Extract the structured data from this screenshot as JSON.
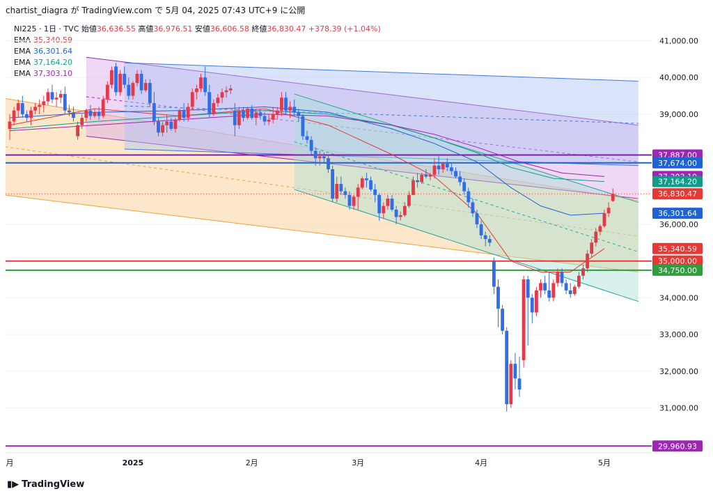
{
  "header": {
    "text": "chartist_diagra が TradingView.com で 5月 04, 2025 07:43 UTC+9 に公開"
  },
  "legend": {
    "symbol": "NI225 · 1日 · TVC",
    "open_label": "始値",
    "open": "36,636.55",
    "high_label": "高値",
    "high": "36,976.51",
    "low_label": "安値",
    "low": "36,606.58",
    "close_label": "終値",
    "close": "36,830.47",
    "change": "+378.39 (+1.04%)",
    "emas": [
      {
        "label": "EMA",
        "value": "35,340.59",
        "color": "#e53935"
      },
      {
        "label": "EMA",
        "value": "36,301.64",
        "color": "#1e63d6"
      },
      {
        "label": "EMA",
        "value": "37,164.20",
        "color": "#0f9d8a"
      },
      {
        "label": "EMA",
        "value": "37,303.10",
        "color": "#9c27b0"
      }
    ]
  },
  "colors": {
    "up": "#e53949",
    "down": "#2f6ee8",
    "down_text": "#1e63d6",
    "up_text": "#e53949"
  },
  "footer": {
    "brand": "TradingView"
  },
  "chart_data": {
    "type": "candlestick",
    "ylim": [
      30500,
      41600
    ],
    "y_ticks": [
      "41,000.00",
      "40,000.00",
      "39,000.00",
      "36,000.00",
      "34,000.00",
      "33,000.00",
      "32,000.00",
      "31,000.00"
    ],
    "y_tick_values": [
      41000,
      40000,
      39000,
      36000,
      34000,
      33000,
      32000,
      31000
    ],
    "x_ticks": [
      {
        "label": "月",
        "t": 0
      },
      {
        "label": "2025",
        "t": 29
      },
      {
        "label": "2月",
        "t": 57
      },
      {
        "label": "3月",
        "t": 82
      },
      {
        "label": "4月",
        "t": 111
      },
      {
        "label": "5月",
        "t": 140
      }
    ],
    "candles": [
      [
        38600,
        39000,
        38300,
        38800
      ],
      [
        38800,
        39200,
        38700,
        39100
      ],
      [
        39100,
        39400,
        38900,
        39300
      ],
      [
        39300,
        39500,
        38900,
        39000
      ],
      [
        39000,
        39100,
        38800,
        38900
      ],
      [
        38900,
        39200,
        38700,
        39100
      ],
      [
        39100,
        39300,
        39000,
        39200
      ],
      [
        39200,
        39400,
        39000,
        39250
      ],
      [
        39250,
        39500,
        39050,
        39350
      ],
      [
        39350,
        39700,
        39250,
        39600
      ],
      [
        39600,
        39800,
        39300,
        39400
      ],
      [
        39400,
        39600,
        39200,
        39450
      ],
      [
        39450,
        39650,
        39300,
        39550
      ],
      [
        39550,
        39750,
        39000,
        39100
      ],
      [
        39100,
        39250,
        38950,
        39050
      ],
      [
        39050,
        39200,
        38800,
        38900
      ],
      [
        38400,
        38800,
        38300,
        38700
      ],
      [
        38700,
        39000,
        38600,
        38900
      ],
      [
        38900,
        39150,
        38800,
        39100
      ],
      [
        39100,
        39250,
        38850,
        38950
      ],
      [
        38950,
        39150,
        38900,
        39050
      ],
      [
        39050,
        39200,
        38850,
        38950
      ],
      [
        38950,
        39500,
        38900,
        39400
      ],
      [
        39400,
        39900,
        39300,
        39800
      ],
      [
        39800,
        40300,
        39700,
        40200
      ],
      [
        40300,
        40400,
        39500,
        39600
      ],
      [
        39600,
        40200,
        39500,
        40100
      ],
      [
        40100,
        40300,
        39700,
        39800
      ],
      [
        39800,
        40000,
        39400,
        39500
      ],
      [
        39500,
        39900,
        39400,
        39850
      ],
      [
        39850,
        40200,
        39750,
        40100
      ],
      [
        40100,
        40200,
        39550,
        39650
      ],
      [
        39650,
        39950,
        39600,
        39850
      ],
      [
        39850,
        39950,
        39200,
        39300
      ],
      [
        39300,
        39600,
        38700,
        38800
      ],
      [
        38800,
        38900,
        38400,
        38500
      ],
      [
        38500,
        38800,
        38400,
        38700
      ],
      [
        38700,
        39000,
        38500,
        38800
      ],
      [
        38800,
        38900,
        38550,
        38600
      ],
      [
        38600,
        38900,
        38500,
        38850
      ],
      [
        38850,
        39150,
        38800,
        39100
      ],
      [
        39100,
        39300,
        38800,
        38900
      ],
      [
        38900,
        39300,
        38800,
        39200
      ],
      [
        39200,
        39700,
        39100,
        39600
      ],
      [
        39600,
        39800,
        39400,
        39700
      ],
      [
        39700,
        40100,
        39600,
        40000
      ],
      [
        40000,
        40300,
        39500,
        39600
      ],
      [
        39600,
        39800,
        38900,
        39000
      ],
      [
        39000,
        39400,
        38950,
        39300
      ],
      [
        39300,
        39550,
        39200,
        39450
      ],
      [
        39450,
        39700,
        39300,
        39600
      ],
      [
        39600,
        39750,
        39450,
        39650
      ],
      [
        39650,
        39800,
        39550,
        39700
      ],
      [
        39100,
        39300,
        38400,
        38700
      ],
      [
        38700,
        39200,
        38600,
        39100
      ],
      [
        39100,
        39200,
        38800,
        38900
      ],
      [
        38900,
        39200,
        38850,
        39150
      ],
      [
        39150,
        39250,
        38850,
        38900
      ],
      [
        38900,
        39150,
        38700,
        39050
      ],
      [
        39050,
        39150,
        38850,
        38950
      ],
      [
        38950,
        39050,
        38700,
        38800
      ],
      [
        38800,
        39000,
        38700,
        38850
      ],
      [
        38850,
        39200,
        38750,
        39000
      ],
      [
        39000,
        39200,
        38850,
        39100
      ],
      [
        39100,
        39600,
        38950,
        39450
      ],
      [
        39450,
        39600,
        39000,
        39100
      ],
      [
        39100,
        39350,
        38900,
        39200
      ],
      [
        39200,
        39400,
        38950,
        39050
      ],
      [
        39050,
        39150,
        38800,
        38950
      ],
      [
        38950,
        39000,
        38300,
        38400
      ],
      [
        38400,
        38550,
        38200,
        38300
      ],
      [
        38300,
        38400,
        37900,
        38000
      ],
      [
        38000,
        38100,
        37600,
        37800
      ],
      [
        37800,
        38000,
        37600,
        37850
      ],
      [
        37850,
        37950,
        37650,
        37800
      ],
      [
        37800,
        37900,
        37400,
        37500
      ],
      [
        37500,
        37600,
        36600,
        36700
      ],
      [
        36700,
        37300,
        36600,
        37100
      ],
      [
        37100,
        37300,
        36800,
        36900
      ],
      [
        36900,
        37000,
        36700,
        36800
      ],
      [
        36800,
        36900,
        36400,
        36500
      ],
      [
        36500,
        36800,
        36400,
        36750
      ],
      [
        36750,
        37100,
        36400,
        37000
      ],
      [
        37000,
        37300,
        36950,
        37250
      ],
      [
        37250,
        37400,
        37000,
        37200
      ],
      [
        37200,
        37300,
        36900,
        36950
      ],
      [
        36950,
        37100,
        36600,
        36800
      ],
      [
        36800,
        36850,
        36100,
        36300
      ],
      [
        36300,
        36600,
        36150,
        36500
      ],
      [
        36500,
        36800,
        36400,
        36700
      ],
      [
        36700,
        36800,
        36350,
        36400
      ],
      [
        36400,
        36500,
        36000,
        36200
      ],
      [
        36200,
        36350,
        36100,
        36250
      ],
      [
        36250,
        36600,
        36200,
        36500
      ],
      [
        36500,
        36900,
        36450,
        36800
      ],
      [
        36800,
        37300,
        36800,
        37200
      ],
      [
        37200,
        37400,
        37000,
        37150
      ],
      [
        37150,
        37400,
        37100,
        37350
      ],
      [
        37350,
        37500,
        37250,
        37300
      ],
      [
        37300,
        37400,
        37200,
        37350
      ],
      [
        37350,
        37800,
        37250,
        37600
      ],
      [
        37600,
        37850,
        37350,
        37500
      ],
      [
        37500,
        37700,
        37400,
        37650
      ],
      [
        37650,
        37800,
        37450,
        37550
      ],
      [
        37550,
        37650,
        37350,
        37450
      ],
      [
        37450,
        37550,
        37250,
        37300
      ],
      [
        37300,
        37450,
        37050,
        37150
      ],
      [
        37150,
        37250,
        36800,
        36900
      ],
      [
        36900,
        37000,
        36450,
        36600
      ],
      [
        36600,
        36700,
        36200,
        36300
      ],
      [
        36300,
        36400,
        35900,
        36000
      ],
      [
        36000,
        36100,
        35600,
        35700
      ],
      [
        35700,
        35800,
        35400,
        35600
      ],
      [
        35600,
        35700,
        35400,
        35500
      ],
      [
        35000,
        35100,
        34100,
        34300
      ],
      [
        34300,
        34500,
        33200,
        33700
      ],
      [
        33700,
        33800,
        33000,
        33100
      ],
      [
        33100,
        33200,
        30900,
        31100
      ],
      [
        31100,
        32300,
        31000,
        32200
      ],
      [
        32200,
        32500,
        31500,
        31800
      ],
      [
        31800,
        32400,
        31300,
        31500
      ],
      [
        32300,
        34600,
        32100,
        34500
      ],
      [
        34500,
        34600,
        32700,
        34000
      ],
      [
        34000,
        34100,
        33300,
        33600
      ],
      [
        33600,
        34300,
        33500,
        34200
      ],
      [
        34200,
        34500,
        34000,
        34400
      ],
      [
        34400,
        34600,
        34100,
        34200
      ],
      [
        34200,
        34700,
        33900,
        34000
      ],
      [
        34000,
        34500,
        33900,
        34400
      ],
      [
        34400,
        34800,
        34300,
        34700
      ],
      [
        34700,
        34800,
        34300,
        34400
      ],
      [
        34400,
        34500,
        34100,
        34200
      ],
      [
        34200,
        34400,
        34000,
        34100
      ],
      [
        34100,
        34350,
        34050,
        34300
      ],
      [
        34300,
        34700,
        34250,
        34600
      ],
      [
        34600,
        34900,
        34500,
        34800
      ],
      [
        34800,
        35300,
        34700,
        35200
      ],
      [
        35200,
        35600,
        35100,
        35500
      ],
      [
        35500,
        35900,
        35400,
        35800
      ],
      [
        35800,
        36000,
        35700,
        35950
      ],
      [
        35950,
        36400,
        35900,
        36300
      ],
      [
        36300,
        36600,
        36200,
        36450
      ],
      [
        36636.55,
        36976.51,
        36606.58,
        36830.47
      ]
    ],
    "price_tags": [
      {
        "value": 37887,
        "label": "37,887.00",
        "color": "#9c27b0"
      },
      {
        "value": 37674,
        "label": "37,674.00",
        "color": "#1e63d6"
      },
      {
        "value": 37303.1,
        "label": "37,303.10",
        "color": "#9c27b0"
      },
      {
        "value": 37164.2,
        "label": "37,164.20",
        "color": "#0f9d8a"
      },
      {
        "value": 36830.47,
        "label": "36,830.47",
        "color": "#e53935"
      },
      {
        "value": 36301.64,
        "label": "36,301.64",
        "color": "#1e63d6"
      },
      {
        "value": 35340.59,
        "label": "35,340.59",
        "color": "#e53935"
      },
      {
        "value": 35000,
        "label": "35,000.00",
        "color": "#e53935"
      },
      {
        "value": 34750,
        "label": "34,750.00",
        "color": "#2e9e3e"
      },
      {
        "value": 29960.93,
        "label": "29,960.93",
        "color": "#9c27b0"
      }
    ],
    "horizontal_lines": [
      {
        "value": 37887,
        "color": "#7b1fa2"
      },
      {
        "value": 37674,
        "color": "#1e63d6"
      },
      {
        "value": 35000,
        "color": "#e53935"
      },
      {
        "value": 34750,
        "color": "#2e9e3e"
      },
      {
        "value": 29960.93,
        "color": "#9c27b0"
      }
    ],
    "channels": [
      {
        "name": "orange",
        "t1": -5,
        "t2": 148,
        "top1": 39500,
        "top2": 36650,
        "bot1": 36850,
        "bot2": 34700,
        "fill": "#f9c98a",
        "stroke": "#f0a040",
        "mid": true
      },
      {
        "name": "purple",
        "t1": 18,
        "t2": 148,
        "top1": 40550,
        "top2": 38700,
        "bot1": 38400,
        "bot2": 36700,
        "fill": "#d9a9e8",
        "stroke": "#9c27b0",
        "mid": true
      },
      {
        "name": "blue",
        "t1": 27,
        "t2": 148,
        "top1": 40400,
        "top2": 39900,
        "bot1": 38050,
        "bot2": 37600,
        "fill": "#aac4f6",
        "stroke": "#3f77e0",
        "mid": true
      },
      {
        "name": "teal",
        "t1": 67,
        "t2": 148,
        "top1": 39550,
        "top2": 36600,
        "bot1": 36950,
        "bot2": 33900,
        "fill": "#a8e0d4",
        "stroke": "#26a69a",
        "mid": true
      }
    ],
    "emas_series": [
      {
        "color": "#e53935",
        "values": [
          [
            0,
            38700
          ],
          [
            20,
            39150
          ],
          [
            40,
            38950
          ],
          [
            60,
            39150
          ],
          [
            75,
            38700
          ],
          [
            90,
            37900
          ],
          [
            100,
            37300
          ],
          [
            110,
            36300
          ],
          [
            118,
            35000
          ],
          [
            125,
            34700
          ],
          [
            132,
            34700
          ],
          [
            140,
            35340
          ]
        ]
      },
      {
        "color": "#1e63d6",
        "values": [
          [
            0,
            38900
          ],
          [
            20,
            39050
          ],
          [
            40,
            39100
          ],
          [
            60,
            39200
          ],
          [
            75,
            39050
          ],
          [
            90,
            38600
          ],
          [
            100,
            38200
          ],
          [
            110,
            37700
          ],
          [
            118,
            37000
          ],
          [
            125,
            36500
          ],
          [
            132,
            36250
          ],
          [
            140,
            36301
          ]
        ]
      },
      {
        "color": "#0f9d8a",
        "values": [
          [
            0,
            38600
          ],
          [
            20,
            38800
          ],
          [
            40,
            38950
          ],
          [
            60,
            39100
          ],
          [
            75,
            39000
          ],
          [
            90,
            38700
          ],
          [
            100,
            38350
          ],
          [
            110,
            37950
          ],
          [
            118,
            37550
          ],
          [
            128,
            37250
          ],
          [
            140,
            37164
          ]
        ]
      },
      {
        "color": "#9c27b0",
        "values": [
          [
            0,
            38550
          ],
          [
            20,
            38700
          ],
          [
            40,
            38850
          ],
          [
            60,
            39000
          ],
          [
            75,
            38950
          ],
          [
            90,
            38700
          ],
          [
            100,
            38450
          ],
          [
            110,
            38100
          ],
          [
            120,
            37700
          ],
          [
            130,
            37400
          ],
          [
            140,
            37303
          ]
        ]
      }
    ]
  }
}
